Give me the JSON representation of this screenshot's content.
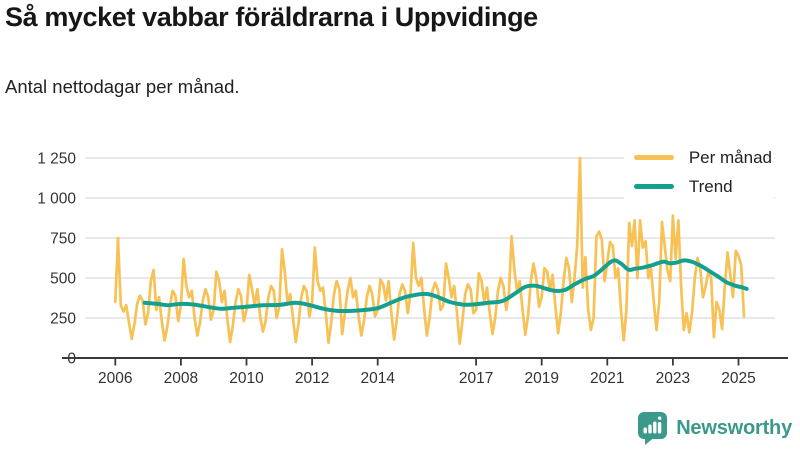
{
  "header": {
    "title": "Så mycket vabbar föräldrarna i Uppvidinge",
    "subtitle": "Antal nettodagar per månad."
  },
  "footer": {
    "brand": "Newsworthy"
  },
  "colors": {
    "per_manad": "#F8C156",
    "trend": "#14A090",
    "grid": "#DBDBDB",
    "axis": "#3a3a3a",
    "tick_text": "#333333",
    "brand_teal": "#3B998B"
  },
  "chart_data": {
    "type": "line",
    "title": "Så mycket vabbar föräldrarna i Uppvidinge",
    "subtitle": "Antal nettodagar per månad.",
    "xlabel": "",
    "ylabel": "Antal nettodagar per månad",
    "ylim": [
      0,
      1250
    ],
    "yticks": [
      0,
      250,
      500,
      750,
      1000,
      1250
    ],
    "ytick_labels": [
      "0",
      "250",
      "500",
      "750",
      "1 000",
      "1 250"
    ],
    "xtick_years": [
      2006,
      2008,
      2010,
      2012,
      2014,
      2017,
      2019,
      2021,
      2023,
      2025
    ],
    "x_range_years": [
      2006.0,
      2025.25
    ],
    "grid": "horizontal-only",
    "legend_position": "top-right",
    "series": [
      {
        "name": "Per månad",
        "type": "line",
        "color": "#F8C156",
        "start": "2006-01",
        "frequency": "monthly",
        "values": [
          350,
          750,
          330,
          290,
          330,
          220,
          120,
          210,
          340,
          390,
          360,
          210,
          280,
          480,
          550,
          300,
          380,
          230,
          110,
          190,
          330,
          420,
          390,
          230,
          330,
          620,
          450,
          380,
          420,
          250,
          140,
          220,
          360,
          430,
          380,
          240,
          300,
          540,
          480,
          350,
          420,
          240,
          100,
          200,
          350,
          430,
          390,
          230,
          300,
          520,
          430,
          330,
          430,
          260,
          165,
          230,
          380,
          450,
          420,
          250,
          320,
          680,
          540,
          350,
          400,
          250,
          100,
          210,
          380,
          450,
          420,
          260,
          350,
          690,
          480,
          420,
          440,
          280,
          95,
          220,
          400,
          480,
          430,
          150,
          280,
          420,
          500,
          380,
          420,
          260,
          140,
          230,
          380,
          450,
          400,
          260,
          300,
          490,
          460,
          360,
          480,
          280,
          115,
          240,
          400,
          460,
          420,
          280,
          400,
          720,
          500,
          450,
          500,
          300,
          140,
          250,
          420,
          470,
          430,
          300,
          330,
          590,
          500,
          380,
          450,
          280,
          90,
          230,
          400,
          460,
          430,
          280,
          300,
          530,
          480,
          350,
          440,
          280,
          150,
          250,
          420,
          500,
          450,
          300,
          400,
          760,
          550,
          420,
          480,
          300,
          145,
          260,
          480,
          590,
          500,
          320,
          380,
          560,
          540,
          420,
          520,
          320,
          155,
          280,
          480,
          625,
          560,
          350,
          500,
          700,
          1250,
          440,
          630,
          300,
          175,
          250,
          760,
          790,
          740,
          480,
          600,
          725,
          700,
          500,
          560,
          300,
          110,
          300,
          845,
          700,
          860,
          500,
          860,
          690,
          730,
          500,
          560,
          350,
          175,
          350,
          850,
          700,
          550,
          480,
          890,
          620,
          860,
          450,
          175,
          280,
          160,
          280,
          500,
          625,
          560,
          380,
          450,
          540,
          500,
          130,
          350,
          300,
          180,
          450,
          660,
          520,
          380,
          670,
          640,
          580,
          260
        ]
      },
      {
        "name": "Trend",
        "type": "line-smooth",
        "color": "#14A090",
        "points": [
          [
            2006.9,
            345
          ],
          [
            2007.3,
            338
          ],
          [
            2007.6,
            330
          ],
          [
            2008.0,
            338
          ],
          [
            2008.4,
            334
          ],
          [
            2008.8,
            320
          ],
          [
            2009.2,
            308
          ],
          [
            2009.6,
            314
          ],
          [
            2010.0,
            320
          ],
          [
            2010.5,
            330
          ],
          [
            2011.0,
            332
          ],
          [
            2011.5,
            345
          ],
          [
            2011.9,
            332
          ],
          [
            2012.3,
            310
          ],
          [
            2012.7,
            296
          ],
          [
            2013.1,
            294
          ],
          [
            2013.6,
            300
          ],
          [
            2014.0,
            312
          ],
          [
            2014.4,
            345
          ],
          [
            2014.8,
            378
          ],
          [
            2015.2,
            396
          ],
          [
            2015.5,
            400
          ],
          [
            2015.8,
            384
          ],
          [
            2016.2,
            350
          ],
          [
            2016.6,
            334
          ],
          [
            2017.0,
            336
          ],
          [
            2017.4,
            346
          ],
          [
            2017.8,
            356
          ],
          [
            2018.2,
            405
          ],
          [
            2018.5,
            445
          ],
          [
            2018.8,
            452
          ],
          [
            2019.1,
            435
          ],
          [
            2019.4,
            420
          ],
          [
            2019.7,
            425
          ],
          [
            2020.0,
            460
          ],
          [
            2020.3,
            492
          ],
          [
            2020.6,
            515
          ],
          [
            2020.9,
            565
          ],
          [
            2021.1,
            600
          ],
          [
            2021.25,
            610
          ],
          [
            2021.45,
            585
          ],
          [
            2021.65,
            552
          ],
          [
            2021.85,
            558
          ],
          [
            2022.1,
            566
          ],
          [
            2022.4,
            582
          ],
          [
            2022.7,
            602
          ],
          [
            2022.9,
            592
          ],
          [
            2023.1,
            596
          ],
          [
            2023.35,
            610
          ],
          [
            2023.6,
            600
          ],
          [
            2023.85,
            576
          ],
          [
            2024.1,
            545
          ],
          [
            2024.4,
            506
          ],
          [
            2024.65,
            472
          ],
          [
            2024.9,
            452
          ],
          [
            2025.1,
            442
          ],
          [
            2025.25,
            432
          ]
        ]
      }
    ]
  }
}
